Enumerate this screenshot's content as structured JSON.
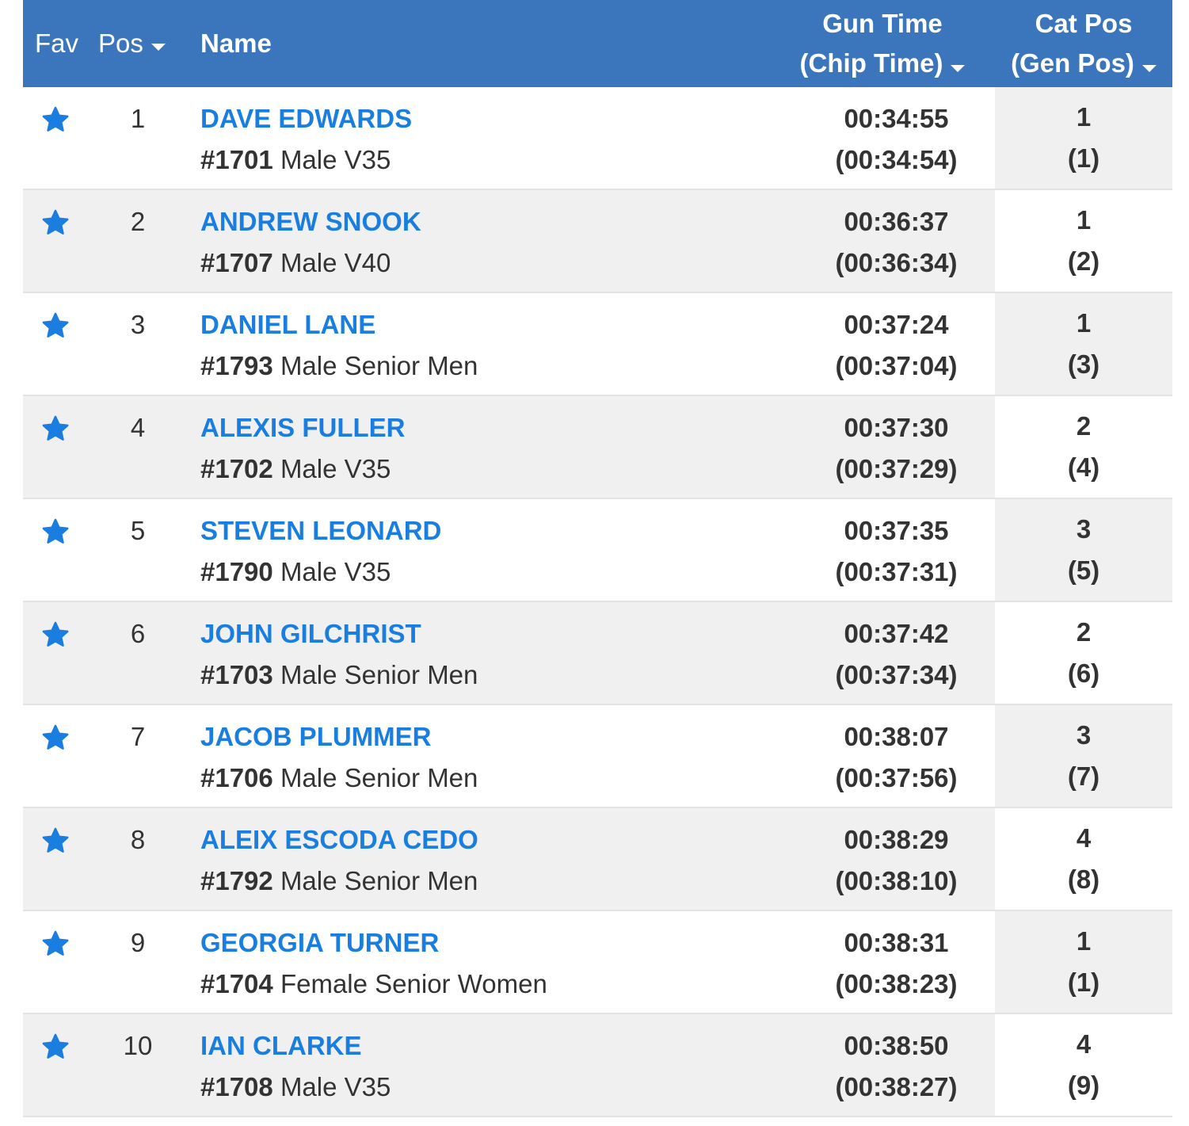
{
  "header": {
    "fav": "Fav",
    "pos": "Pos",
    "name": "Name",
    "gun_line1": "Gun Time",
    "gun_line2": "(Chip Time)",
    "cat_line1": "Cat Pos",
    "cat_line2": "(Gen Pos)"
  },
  "colors": {
    "header_bg": "#3b76bd",
    "name_link": "#1a7ee0",
    "star": "#1a7ee0"
  },
  "rows": [
    {
      "pos": "1",
      "name": "DAVE EDWARDS",
      "bib": "#1701",
      "category": "Male V35",
      "gun": "00:34:55",
      "chip": "(00:34:54)",
      "cat_pos": "1",
      "gen_pos": "(1)"
    },
    {
      "pos": "2",
      "name": "ANDREW SNOOK",
      "bib": "#1707",
      "category": "Male V40",
      "gun": "00:36:37",
      "chip": "(00:36:34)",
      "cat_pos": "1",
      "gen_pos": "(2)"
    },
    {
      "pos": "3",
      "name": "DANIEL LANE",
      "bib": "#1793",
      "category": "Male Senior Men",
      "gun": "00:37:24",
      "chip": "(00:37:04)",
      "cat_pos": "1",
      "gen_pos": "(3)"
    },
    {
      "pos": "4",
      "name": "ALEXIS FULLER",
      "bib": "#1702",
      "category": "Male V35",
      "gun": "00:37:30",
      "chip": "(00:37:29)",
      "cat_pos": "2",
      "gen_pos": "(4)"
    },
    {
      "pos": "5",
      "name": "STEVEN LEONARD",
      "bib": "#1790",
      "category": "Male V35",
      "gun": "00:37:35",
      "chip": "(00:37:31)",
      "cat_pos": "3",
      "gen_pos": "(5)"
    },
    {
      "pos": "6",
      "name": "JOHN GILCHRIST",
      "bib": "#1703",
      "category": "Male Senior Men",
      "gun": "00:37:42",
      "chip": "(00:37:34)",
      "cat_pos": "2",
      "gen_pos": "(6)"
    },
    {
      "pos": "7",
      "name": "JACOB PLUMMER",
      "bib": "#1706",
      "category": "Male Senior Men",
      "gun": "00:38:07",
      "chip": "(00:37:56)",
      "cat_pos": "3",
      "gen_pos": "(7)"
    },
    {
      "pos": "8",
      "name": "ALEIX ESCODA CEDO",
      "bib": "#1792",
      "category": "Male Senior Men",
      "gun": "00:38:29",
      "chip": "(00:38:10)",
      "cat_pos": "4",
      "gen_pos": "(8)"
    },
    {
      "pos": "9",
      "name": "GEORGIA TURNER",
      "bib": "#1704",
      "category": "Female Senior Women",
      "gun": "00:38:31",
      "chip": "(00:38:23)",
      "cat_pos": "1",
      "gen_pos": "(1)"
    },
    {
      "pos": "10",
      "name": "IAN CLARKE",
      "bib": "#1708",
      "category": "Male V35",
      "gun": "00:38:50",
      "chip": "(00:38:27)",
      "cat_pos": "4",
      "gen_pos": "(9)"
    }
  ]
}
